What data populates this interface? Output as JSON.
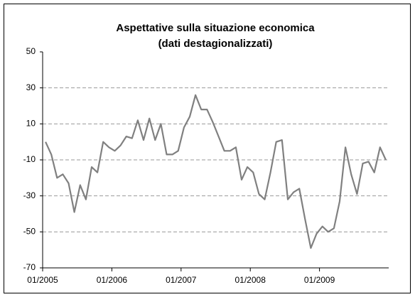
{
  "chart_data": {
    "type": "line",
    "title": "Aspettative sulla situazione economica",
    "subtitle": "(dati destagionalizzati)",
    "categories": [
      "01/2005",
      null,
      null,
      null,
      null,
      null,
      null,
      null,
      null,
      null,
      null,
      null,
      "01/2006",
      null,
      null,
      null,
      null,
      null,
      null,
      null,
      null,
      null,
      null,
      null,
      "01/2007",
      null,
      null,
      null,
      null,
      null,
      null,
      null,
      null,
      null,
      null,
      null,
      "01/2008",
      null,
      null,
      null,
      null,
      null,
      null,
      null,
      null,
      null,
      null,
      null,
      "01/2009",
      null,
      null,
      null,
      null,
      null,
      null,
      null,
      null,
      null,
      null,
      null
    ],
    "values": [
      0,
      -7,
      -20,
      -18,
      -23,
      -39,
      -24,
      -32,
      -14,
      -17,
      0,
      -3,
      -5,
      -2,
      3,
      2,
      12,
      1,
      13,
      1,
      10,
      -7,
      -7,
      -5,
      8,
      14,
      26,
      18,
      18,
      11,
      3,
      -5,
      -5,
      -3,
      -21,
      -14,
      -17,
      -29,
      -32,
      -17,
      0,
      1,
      -32,
      -28,
      -26,
      -43,
      -59,
      -51,
      -47,
      -50,
      -48,
      -33,
      -3,
      -18,
      -29,
      -12,
      -11,
      -17,
      -3,
      -10
    ],
    "color": "#808080",
    "ylim": [
      -70,
      50
    ],
    "yticks": [
      -70,
      -50,
      -30,
      -10,
      10,
      30,
      50
    ],
    "grid": true
  }
}
